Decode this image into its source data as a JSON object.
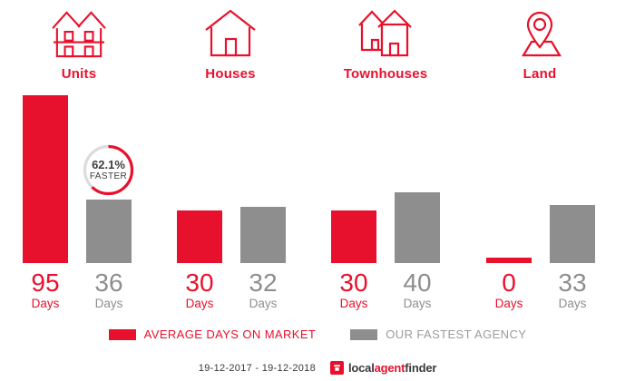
{
  "header": {
    "categories": [
      {
        "label": "Units",
        "icon": "units-icon"
      },
      {
        "label": "Houses",
        "icon": "houses-icon"
      },
      {
        "label": "Townhouses",
        "icon": "townhouses-icon"
      },
      {
        "label": "Land",
        "icon": "land-icon"
      }
    ]
  },
  "groups": [
    {
      "category": "Units",
      "avg_days": "95",
      "fastest_days": "36",
      "unit": "Days"
    },
    {
      "category": "Houses",
      "avg_days": "30",
      "fastest_days": "32",
      "unit": "Days"
    },
    {
      "category": "Townhouses",
      "avg_days": "30",
      "fastest_days": "40",
      "unit": "Days"
    },
    {
      "category": "Land",
      "avg_days": "0",
      "fastest_days": "33",
      "unit": "Days"
    }
  ],
  "badge": {
    "percent": "62.1%",
    "label": "FASTER",
    "percent_value": 62.1
  },
  "legend": [
    {
      "label": "AVERAGE DAYS ON MARKET",
      "color": "#e8112d"
    },
    {
      "label": "OUR FASTEST AGENCY",
      "color": "#8e8e8e"
    }
  ],
  "footer": {
    "date_range": "19-12-2017 - 19-12-2018",
    "logo": {
      "part1": "local",
      "part2": "agent",
      "part3": "finder"
    }
  },
  "colors": {
    "red": "#e8112d",
    "gray": "#8e8e8e",
    "badge_ring_bg": "#dcdcdc",
    "dark_text": "#3a3a3a"
  },
  "chart_data": {
    "type": "bar",
    "categories": [
      "Units",
      "Houses",
      "Townhouses",
      "Land"
    ],
    "series": [
      {
        "name": "AVERAGE DAYS ON MARKET",
        "color": "#e8112d",
        "values": [
          95,
          30,
          30,
          0
        ]
      },
      {
        "name": "OUR FASTEST AGENCY",
        "color": "#8e8e8e",
        "values": [
          36,
          32,
          40,
          33
        ]
      }
    ],
    "value_unit": "Days",
    "ylim": [
      0,
      95
    ],
    "grid": false,
    "legend_position": "bottom",
    "annotation": {
      "text": "62.1% FASTER",
      "target": "Units - OUR FASTEST AGENCY bar"
    },
    "period": "19-12-2017 - 19-12-2018"
  }
}
